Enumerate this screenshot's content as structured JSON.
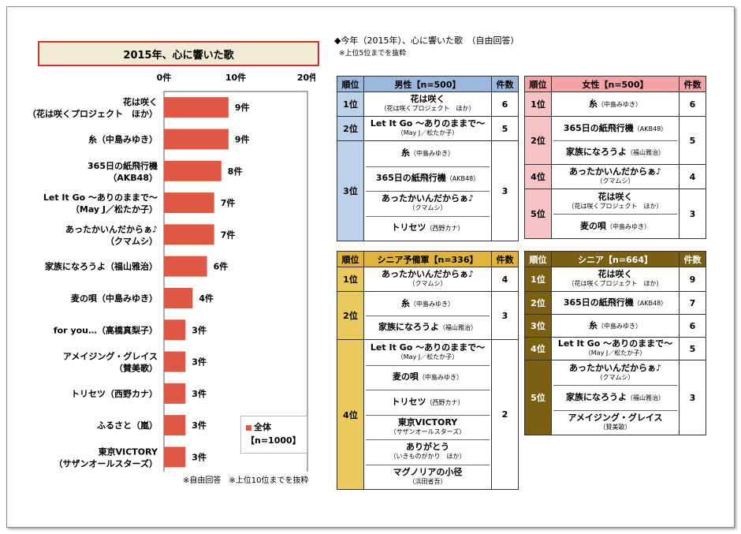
{
  "page": {
    "chart_title": "2015年、心に響いた歌",
    "right_title": "◆今年（2015年）、心に響いた歌　（自由回答）",
    "right_note": "※上位5位までを抜粋",
    "footnote": "※自由回答　※上位10位までを抜粋",
    "legend_name": "全体",
    "legend_n": "【n=1000】"
  },
  "colors": {
    "bar": "#de5844",
    "male_header": "#9bb8dc",
    "male_rank": "#bcd1ea",
    "female_header": "#f4a3a6",
    "female_rank": "#f7c4c6",
    "pre_senior_header": "#e0b43b",
    "pre_senior_rank": "#ecc95f",
    "senior_header": "#7b5f14",
    "senior_rank": "#7b5f14"
  },
  "chart_data": {
    "type": "bar",
    "orientation": "horizontal",
    "title": "2015年、心に響いた歌",
    "categories": [
      {
        "line1": "花は咲く",
        "line2": "（花は咲くプロジェクト　ほか）"
      },
      {
        "line1": "糸（中島みゆき）",
        "line2": ""
      },
      {
        "line1": "365日の紙飛行機",
        "line2": "（AKB48）"
      },
      {
        "line1": "Let It Go ～ありのままで～",
        "line2": "（May J／松たか子）"
      },
      {
        "line1": "あったかいんだからぁ♪",
        "line2": "（クマムシ）"
      },
      {
        "line1": "家族になろうよ（福山雅治）",
        "line2": ""
      },
      {
        "line1": "麦の唄（中島みゆき）",
        "line2": ""
      },
      {
        "line1": "for you…（高橋真梨子）",
        "line2": ""
      },
      {
        "line1": "アメイジング・グレイス",
        "line2": "（賛美歌）"
      },
      {
        "line1": "トリセツ（西野カナ）",
        "line2": ""
      },
      {
        "line1": "ふるさと（嵐）",
        "line2": ""
      },
      {
        "line1": "東京VICTORY",
        "line2": "（サザンオールスターズ）"
      }
    ],
    "series": [
      {
        "name": "全体",
        "values": [
          9,
          9,
          8,
          7,
          7,
          6,
          4,
          3,
          3,
          3,
          3,
          3
        ]
      }
    ],
    "value_labels": [
      "9件",
      "9件",
      "8件",
      "7件",
      "7件",
      "6件",
      "4件",
      "3件",
      "3件",
      "3件",
      "3件",
      "3件"
    ],
    "xlim": [
      0,
      20
    ],
    "xticks": [
      0,
      10,
      20
    ],
    "xtick_labels": [
      "0件",
      "10件",
      "20件"
    ],
    "legend": "bottom-right"
  },
  "tables": [
    {
      "key": "male",
      "header": [
        "順位",
        "男性【n=500】",
        "件数"
      ],
      "groups": [
        {
          "rank": "1位",
          "count": "6",
          "songs": [
            {
              "title": "花は咲く",
              "artist": "（花は咲くプロジェクト　ほか）",
              "inline": false
            }
          ]
        },
        {
          "rank": "2位",
          "count": "5",
          "songs": [
            {
              "title": "Let It Go ～ありのままで～",
              "artist": "（May J／松たか子）",
              "inline": false
            }
          ]
        },
        {
          "rank": "3位",
          "count": "3",
          "songs": [
            {
              "title": "糸",
              "artist": "（中島みゆき）",
              "inline": true
            },
            {
              "title": "365日の紙飛行機",
              "artist": "（AKB48）",
              "inline": true
            },
            {
              "title": "あったかいんだからぁ♪",
              "artist": "（クマムシ）",
              "inline": false
            },
            {
              "title": "トリセツ",
              "artist": "（西野カナ）",
              "inline": true
            }
          ]
        }
      ]
    },
    {
      "key": "female",
      "header": [
        "順位",
        "女性【n=500】",
        "件数"
      ],
      "groups": [
        {
          "rank": "1位",
          "count": "6",
          "songs": [
            {
              "title": "糸",
              "artist": "（中島みゆき）",
              "inline": true
            }
          ]
        },
        {
          "rank": "2位",
          "count": "5",
          "songs": [
            {
              "title": "365日の紙飛行機",
              "artist": "（AKB48）",
              "inline": true
            },
            {
              "title": "家族になろうよ",
              "artist": "（福山雅治）",
              "inline": true
            }
          ]
        },
        {
          "rank": "4位",
          "count": "4",
          "songs": [
            {
              "title": "あったかいんだからぁ♪",
              "artist": "（クマムシ）",
              "inline": false
            }
          ]
        },
        {
          "rank": "5位",
          "count": "3",
          "songs": [
            {
              "title": "花は咲く",
              "artist": "（花は咲くプロジェクト　ほか）",
              "inline": false
            },
            {
              "title": "麦の唄",
              "artist": "（中島みゆき）",
              "inline": true
            }
          ]
        }
      ]
    },
    {
      "key": "pre_senior",
      "header": [
        "順位",
        "シニア予備軍【n=336】",
        "件数"
      ],
      "groups": [
        {
          "rank": "1位",
          "count": "4",
          "songs": [
            {
              "title": "あったかいんだからぁ♪",
              "artist": "（クマムシ）",
              "inline": false
            }
          ]
        },
        {
          "rank": "2位",
          "count": "3",
          "songs": [
            {
              "title": "糸",
              "artist": "（中島みゆき）",
              "inline": true
            },
            {
              "title": "家族になろうよ",
              "artist": "（福山雅治）",
              "inline": true
            }
          ]
        },
        {
          "rank": "4位",
          "count": "2",
          "songs": [
            {
              "title": "Let It Go ～ありのままで～",
              "artist": "（May J／松たか子）",
              "inline": false
            },
            {
              "title": "麦の唄",
              "artist": "（中島みゆき）",
              "inline": true
            },
            {
              "title": "トリセツ",
              "artist": "（西野カナ）",
              "inline": true
            },
            {
              "title": "東京VICTORY",
              "artist": "（サザンオールスターズ）",
              "inline": false
            },
            {
              "title": "ありがとう",
              "artist": "（いきものがかり　ほか）",
              "inline": false
            },
            {
              "title": "マグノリアの小径",
              "artist": "（浜田省吾）",
              "inline": false
            }
          ]
        }
      ]
    },
    {
      "key": "senior",
      "header": [
        "順位",
        "シニア【n=664】",
        "件数"
      ],
      "groups": [
        {
          "rank": "1位",
          "count": "9",
          "songs": [
            {
              "title": "花は咲く",
              "artist": "（花は咲くプロジェクト　ほか）",
              "inline": false
            }
          ]
        },
        {
          "rank": "2位",
          "count": "7",
          "songs": [
            {
              "title": "365日の紙飛行機",
              "artist": "（AKB48）",
              "inline": true
            }
          ]
        },
        {
          "rank": "3位",
          "count": "6",
          "songs": [
            {
              "title": "糸",
              "artist": "（中島みゆき）",
              "inline": true
            }
          ]
        },
        {
          "rank": "4位",
          "count": "5",
          "songs": [
            {
              "title": "Let It Go ～ありのままで～",
              "artist": "（May J／松たか子）",
              "inline": false
            }
          ]
        },
        {
          "rank": "5位",
          "count": "3",
          "songs": [
            {
              "title": "あったかいんだからぁ♪",
              "artist": "（クマムシ）",
              "inline": false
            },
            {
              "title": "家族になろうよ",
              "artist": "（福山雅治）",
              "inline": true
            },
            {
              "title": "アメイジング・グレイス",
              "artist": "（賛美歌）",
              "inline": false
            }
          ]
        }
      ]
    }
  ]
}
